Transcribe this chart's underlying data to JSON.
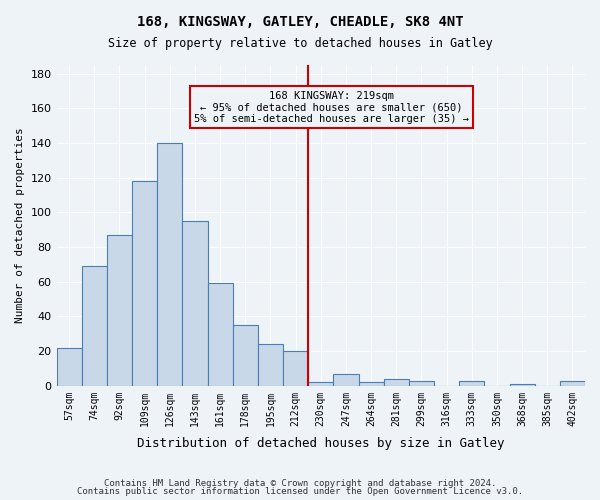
{
  "title1": "168, KINGSWAY, GATLEY, CHEADLE, SK8 4NT",
  "title2": "Size of property relative to detached houses in Gatley",
  "xlabel": "Distribution of detached houses by size in Gatley",
  "ylabel": "Number of detached properties",
  "bar_color": "#c8d8e8",
  "bar_edge_color": "#4a7db5",
  "categories": [
    "57sqm",
    "74sqm",
    "92sqm",
    "109sqm",
    "126sqm",
    "143sqm",
    "161sqm",
    "178sqm",
    "195sqm",
    "212sqm",
    "230sqm",
    "247sqm",
    "264sqm",
    "281sqm",
    "299sqm",
    "316sqm",
    "333sqm",
    "350sqm",
    "368sqm",
    "385sqm",
    "402sqm"
  ],
  "values": [
    22,
    69,
    87,
    118,
    140,
    95,
    59,
    35,
    24,
    20,
    2,
    7,
    2,
    4,
    3,
    0,
    3,
    0,
    1,
    0,
    3
  ],
  "vline_x": 9.5,
  "vline_color": "#cc0000",
  "annotation_text": "168 KINGSWAY: 219sqm\n← 95% of detached houses are smaller (650)\n5% of semi-detached houses are larger (35) →",
  "annotation_box_color": "#cc0000",
  "ylim": [
    0,
    185
  ],
  "yticks": [
    0,
    20,
    40,
    60,
    80,
    100,
    120,
    140,
    160,
    180
  ],
  "footer1": "Contains HM Land Registry data © Crown copyright and database right 2024.",
  "footer2": "Contains public sector information licensed under the Open Government Licence v3.0.",
  "bg_color": "#eef3f8",
  "grid_color": "#ffffff"
}
